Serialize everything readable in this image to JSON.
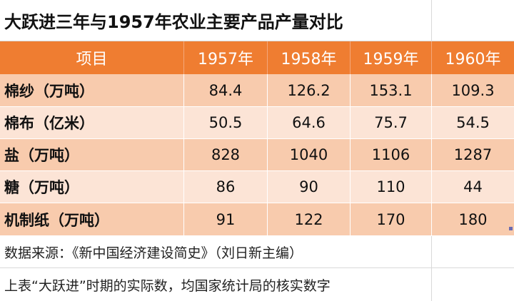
{
  "title": "大跃进三年与1957年农业主要产品产量对比",
  "header": [
    "项目",
    "1957年",
    "1958年",
    "1959年",
    "1960年"
  ],
  "rows": [
    {
      "label": "棉纱（万吨）",
      "values": [
        "84.4",
        "126.2",
        "153.1",
        "109.3"
      ]
    },
    {
      "label": "棉布（亿米）",
      "values": [
        "50.5",
        "64.6",
        "75.7",
        "54.5"
      ]
    },
    {
      "label": "盐（万吨）",
      "values": [
        "828",
        "1040",
        "1106",
        "1287"
      ]
    },
    {
      "label": "糖（万吨）",
      "values": [
        "86",
        "90",
        "110",
        "44"
      ]
    },
    {
      "label": "机制纸（万吨）",
      "values": [
        "91",
        "122",
        "170",
        "180"
      ]
    }
  ],
  "source_note": "数据来源：《新中国经济建设简史》（刘日新主编）",
  "footnote": "上表“大跃进”时期的实际数，均国家统计局的核实数字",
  "colors": {
    "header": "#ef7d31",
    "row_dark": "#f8cbad",
    "row_light": "#fce4d6"
  }
}
